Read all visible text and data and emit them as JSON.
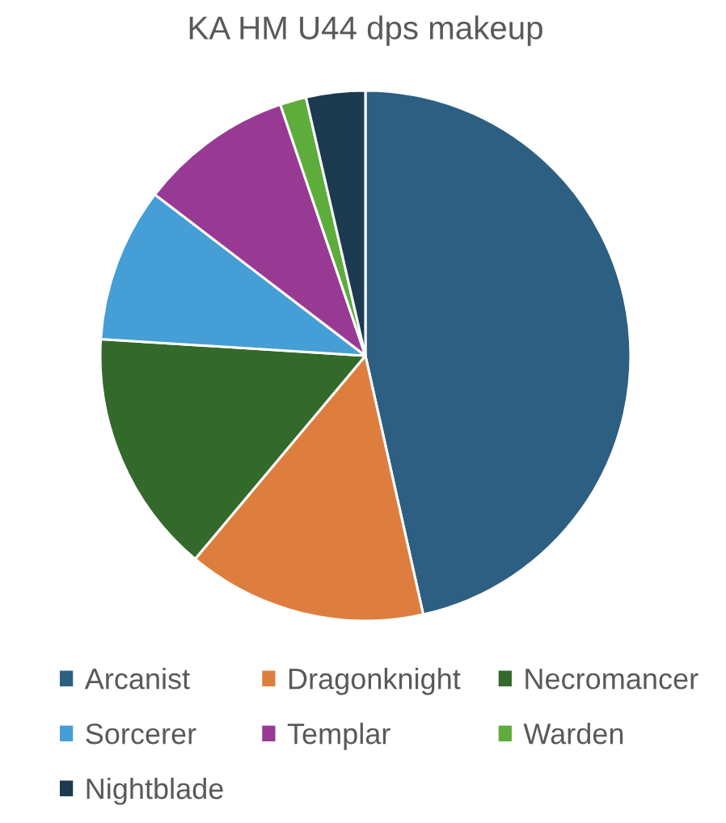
{
  "chart_data": {
    "type": "pie",
    "title": "KA HM U44 dps makeup",
    "categories": [
      "Arcanist",
      "Dragonknight",
      "Necromancer",
      "Sorcerer",
      "Templar",
      "Warden",
      "Nightblade"
    ],
    "values": [
      46.5,
      14.6,
      14.9,
      9.4,
      9.4,
      1.6,
      3.6
    ],
    "colors": [
      "#2d5f82",
      "#de7e3e",
      "#33692b",
      "#459ed6",
      "#983a94",
      "#5eac3c",
      "#1c3a50"
    ],
    "legend": "bottom"
  }
}
